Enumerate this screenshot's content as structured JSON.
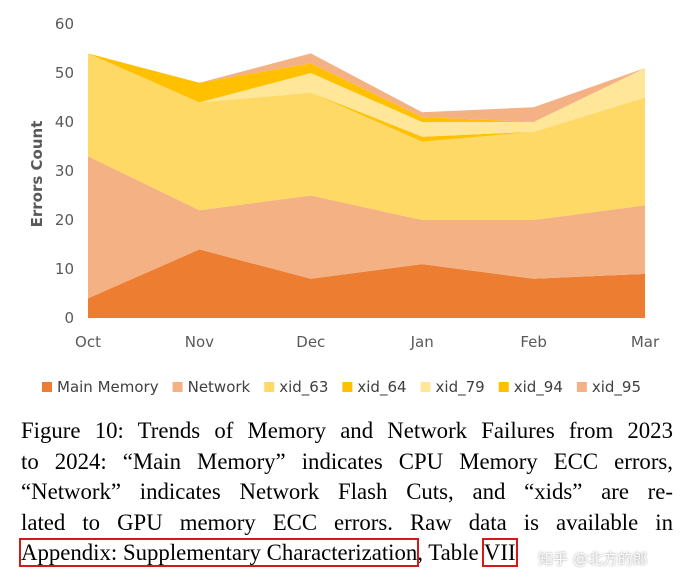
{
  "chart_data": {
    "type": "area",
    "stacked": true,
    "ylabel": "Errors Count",
    "xlabel": "",
    "categories": [
      "Oct",
      "Nov",
      "Dec",
      "Jan",
      "Feb",
      "Mar"
    ],
    "ylim": [
      0,
      60
    ],
    "yticks": [
      0,
      10,
      20,
      30,
      40,
      50,
      60
    ],
    "legend_position": "bottom",
    "series": [
      {
        "name": "Main Memory",
        "color": "#ed7d31",
        "values": [
          4,
          14,
          8,
          11,
          8,
          9
        ]
      },
      {
        "name": "Network",
        "color": "#f4b183",
        "values": [
          29,
          8,
          17,
          9,
          12,
          14
        ]
      },
      {
        "name": "xid_63",
        "color": "#ffd966",
        "values": [
          21,
          22,
          21,
          16,
          18,
          22
        ]
      },
      {
        "name": "xid_64",
        "color": "#ffc000",
        "values": [
          0,
          0,
          0,
          1,
          0,
          0
        ]
      },
      {
        "name": "xid_79",
        "color": "#ffe699",
        "values": [
          0,
          0,
          4,
          3,
          2,
          6
        ]
      },
      {
        "name": "xid_94",
        "color": "#ffc000",
        "values": [
          0,
          4,
          2,
          1,
          0,
          0
        ]
      },
      {
        "name": "xid_95",
        "color": "#f4b183",
        "values": [
          0,
          0,
          2,
          1,
          3,
          0
        ]
      }
    ]
  },
  "caption": {
    "figure_label": "Figure 10:",
    "line1": "Trends of Memory and Network Failures from 2023",
    "line2": "to 2024: “Main Memory” indicates CPU Memory ECC errors,",
    "line3": "“Network” indicates Network Flash Cuts, and “xids” are re-",
    "line4": "lated to GPU memory ECC errors. Raw data is available in",
    "appendix_link": "Appendix: Supplementary Characterization",
    "separator": ",",
    "table_prefix": "Table ",
    "table_ref": "VII"
  },
  "watermark": "知乎 @北方的郎"
}
